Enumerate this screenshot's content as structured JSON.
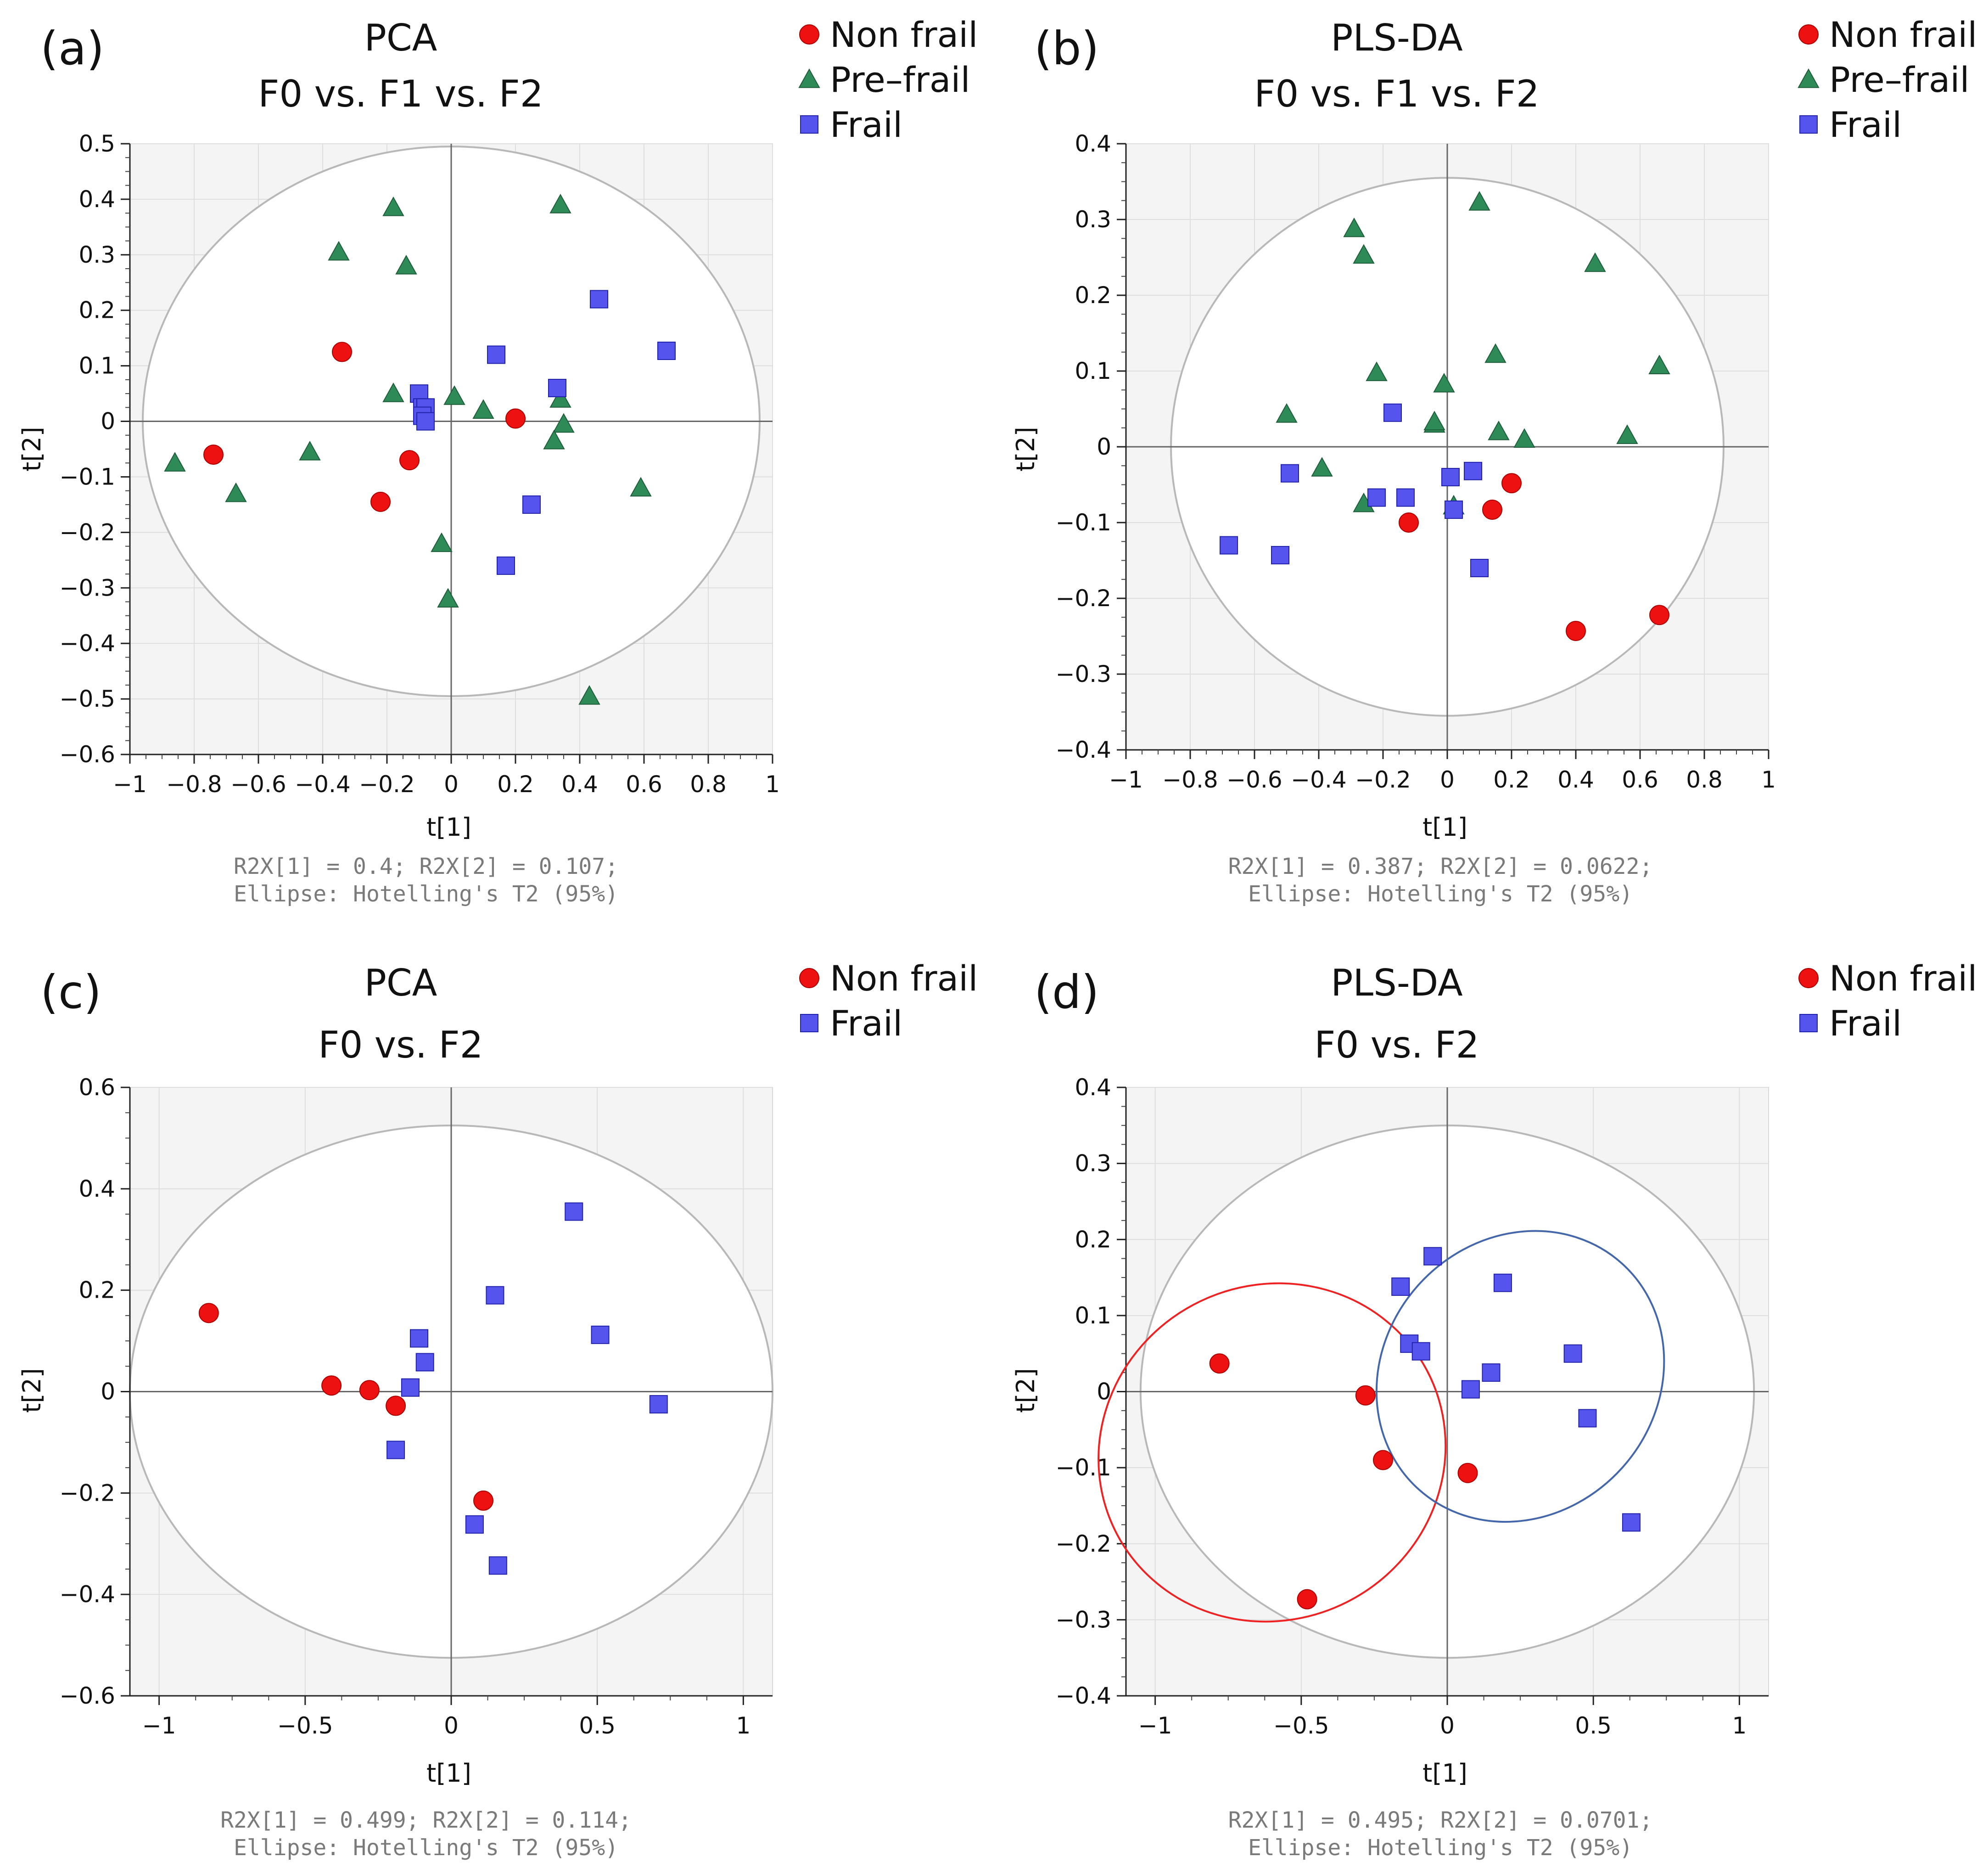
{
  "chart_data": [
    {
      "type": "scatter",
      "panel": "(a)",
      "title": "PCA",
      "subtitle": "F0 vs. F1 vs. F2",
      "xlabel": "t[1]",
      "ylabel": "t[2]",
      "xlim": [
        -1,
        1
      ],
      "ylim": [
        -0.6,
        0.5
      ],
      "xticks": [
        -1,
        -0.8,
        -0.6,
        -0.4,
        -0.2,
        0,
        0.2,
        0.4,
        0.6,
        0.8,
        1
      ],
      "xtick_labels": [
        "−1",
        "−0.8",
        "−0.6",
        "−0.4",
        "−0.2",
        "0",
        "0.2",
        "0.4",
        "0.6",
        "0.8",
        "1"
      ],
      "yticks": [
        -0.6,
        -0.5,
        -0.4,
        -0.3,
        -0.2,
        -0.1,
        0,
        0.1,
        0.2,
        0.3,
        0.4,
        0.5
      ],
      "ytick_labels": [
        "−0.6",
        "−0.5",
        "−0.4",
        "−0.3",
        "−0.2",
        "−0.1",
        "0",
        "0.1",
        "0.2",
        "0.3",
        "0.4",
        "0.5"
      ],
      "hotelling_ellipse": {
        "x_radius": 0.96,
        "y_radius": 0.495
      },
      "footer": [
        "R2X[1] = 0.4; R2X[2] = 0.107;",
        "Ellipse: Hotelling's T2 (95%)"
      ],
      "series": [
        {
          "name": "Non frail",
          "marker": "circle",
          "color": "#ee1111",
          "points": [
            [
              -0.74,
              -0.06
            ],
            [
              -0.34,
              0.125
            ],
            [
              -0.22,
              -0.145
            ],
            [
              -0.13,
              -0.07
            ],
            [
              0.2,
              0.005
            ]
          ]
        },
        {
          "name": "Pre–frail",
          "marker": "triangle",
          "color": "#2e8b57",
          "points": [
            [
              -0.86,
              -0.075
            ],
            [
              -0.67,
              -0.13
            ],
            [
              -0.44,
              -0.055
            ],
            [
              -0.35,
              0.305
            ],
            [
              -0.18,
              0.385
            ],
            [
              -0.14,
              0.28
            ],
            [
              -0.18,
              0.05
            ],
            [
              0.01,
              0.045
            ],
            [
              0.1,
              0.02
            ],
            [
              -0.03,
              -0.22
            ],
            [
              -0.01,
              -0.32
            ],
            [
              0.34,
              0.39
            ],
            [
              0.34,
              0.04
            ],
            [
              0.35,
              -0.005
            ],
            [
              0.32,
              -0.035
            ],
            [
              0.59,
              -0.12
            ],
            [
              0.43,
              -0.495
            ]
          ]
        },
        {
          "name": "Frail",
          "marker": "square",
          "color": "#5555ee",
          "points": [
            [
              -0.1,
              0.05
            ],
            [
              -0.09,
              0.025
            ],
            [
              -0.08,
              0.025
            ],
            [
              -0.09,
              0.01
            ],
            [
              -0.08,
              0
            ],
            [
              0.14,
              0.12
            ],
            [
              0.33,
              0.06
            ],
            [
              0.46,
              0.22
            ],
            [
              0.67,
              0.127
            ],
            [
              0.25,
              -0.15
            ],
            [
              0.17,
              -0.26
            ]
          ]
        }
      ]
    },
    {
      "type": "scatter",
      "panel": "(b)",
      "title": "PLS-DA",
      "subtitle": "F0 vs. F1 vs. F2",
      "xlabel": "t[1]",
      "ylabel": "t[2]",
      "xlim": [
        -1,
        1
      ],
      "ylim": [
        -0.4,
        0.4
      ],
      "xticks": [
        -1,
        -0.8,
        -0.6,
        -0.4,
        -0.2,
        0,
        0.2,
        0.4,
        0.6,
        0.8,
        1
      ],
      "xtick_labels": [
        "−1",
        "−0.8",
        "−0.6",
        "−0.4",
        "−0.2",
        "0",
        "0.2",
        "0.4",
        "0.6",
        "0.8",
        "1"
      ],
      "yticks": [
        -0.4,
        -0.3,
        -0.2,
        -0.1,
        0,
        0.1,
        0.2,
        0.3,
        0.4
      ],
      "ytick_labels": [
        "−0.4",
        "−0.3",
        "−0.2",
        "−0.1",
        "0",
        "0.1",
        "0.2",
        "0.3",
        "0.4"
      ],
      "hotelling_ellipse": {
        "x_radius": 0.86,
        "y_radius": 0.355
      },
      "footer": [
        "R2X[1] = 0.387; R2X[2] = 0.0622;",
        "Ellipse: Hotelling's T2 (95%)"
      ],
      "series": [
        {
          "name": "Non frail",
          "marker": "circle",
          "color": "#ee1111",
          "points": [
            [
              -0.12,
              -0.1
            ],
            [
              0.14,
              -0.083
            ],
            [
              0.2,
              -0.048
            ],
            [
              0.4,
              -0.243
            ],
            [
              0.66,
              -0.222
            ]
          ]
        },
        {
          "name": "Pre–frail",
          "marker": "triangle",
          "color": "#2e8b57",
          "points": [
            [
              -0.29,
              0.288
            ],
            [
              -0.26,
              0.253
            ],
            [
              -0.22,
              0.098
            ],
            [
              -0.5,
              0.043
            ],
            [
              -0.39,
              -0.028
            ],
            [
              -0.26,
              -0.075
            ],
            [
              -0.04,
              0.03
            ],
            [
              -0.04,
              0.033
            ],
            [
              -0.01,
              0.083
            ],
            [
              0.02,
              -0.078
            ],
            [
              0.1,
              0.323
            ],
            [
              0.15,
              0.122
            ],
            [
              0.16,
              0.02
            ],
            [
              0.24,
              0.01
            ],
            [
              0.46,
              0.242
            ],
            [
              0.56,
              0.015
            ],
            [
              0.66,
              0.107
            ]
          ]
        },
        {
          "name": "Frail",
          "marker": "square",
          "color": "#5555ee",
          "points": [
            [
              -0.17,
              0.045
            ],
            [
              -0.49,
              -0.035
            ],
            [
              -0.22,
              -0.067
            ],
            [
              -0.13,
              -0.067
            ],
            [
              -0.68,
              -0.13
            ],
            [
              -0.52,
              -0.143
            ],
            [
              0.01,
              -0.04
            ],
            [
              0.02,
              -0.083
            ],
            [
              0.08,
              -0.032
            ],
            [
              0.1,
              -0.16
            ]
          ]
        }
      ]
    },
    {
      "type": "scatter",
      "panel": "(c)",
      "title": "PCA",
      "subtitle": "F0 vs. F2",
      "xlabel": "t[1]",
      "ylabel": "t[2]",
      "xlim": [
        -1.1,
        1.1
      ],
      "ylim": [
        -0.6,
        0.6
      ],
      "xticks": [
        -1,
        -0.5,
        0,
        0.5,
        1
      ],
      "xtick_labels": [
        "−1",
        "−0.5",
        "0",
        "0.5",
        "1"
      ],
      "yticks": [
        -0.6,
        -0.4,
        -0.2,
        0,
        0.2,
        0.4,
        0.6
      ],
      "ytick_labels": [
        "−0.6",
        "−0.4",
        "−0.2",
        "0",
        "0.2",
        "0.4",
        "0.6"
      ],
      "hotelling_ellipse": {
        "x_radius": 1.1,
        "y_radius": 0.525
      },
      "footer": [
        "R2X[1] = 0.499; R2X[2] = 0.114;",
        "Ellipse: Hotelling's T2 (95%)"
      ],
      "series": [
        {
          "name": "Non frail",
          "marker": "circle",
          "color": "#ee1111",
          "points": [
            [
              -0.83,
              0.155
            ],
            [
              -0.41,
              0.012
            ],
            [
              -0.28,
              0.003
            ],
            [
              -0.19,
              -0.028
            ],
            [
              0.11,
              -0.215
            ]
          ]
        },
        {
          "name": "Frail",
          "marker": "square",
          "color": "#5555ee",
          "points": [
            [
              -0.11,
              0.105
            ],
            [
              -0.09,
              0.058
            ],
            [
              -0.14,
              0.008
            ],
            [
              -0.19,
              -0.115
            ],
            [
              0.15,
              0.19
            ],
            [
              0.42,
              0.355
            ],
            [
              0.51,
              0.112
            ],
            [
              0.71,
              -0.025
            ],
            [
              0.08,
              -0.262
            ],
            [
              0.16,
              -0.343
            ]
          ]
        }
      ]
    },
    {
      "type": "scatter",
      "panel": "(d)",
      "title": "PLS-DA",
      "subtitle": "F0 vs. F2",
      "xlabel": "t[1]",
      "ylabel": "t[2]",
      "xlim": [
        -1.1,
        1.1
      ],
      "ylim": [
        -0.4,
        0.4
      ],
      "xticks": [
        -1,
        -0.5,
        0,
        0.5,
        1
      ],
      "xtick_labels": [
        "−1",
        "−0.5",
        "0",
        "0.5",
        "1"
      ],
      "yticks": [
        -0.4,
        -0.3,
        -0.2,
        -0.1,
        0,
        0.1,
        0.2,
        0.3,
        0.4
      ],
      "ytick_labels": [
        "−0.4",
        "−0.3",
        "−0.2",
        "−0.1",
        "0",
        "0.1",
        "0.2",
        "0.3",
        "0.4"
      ],
      "hotelling_ellipse": {
        "x_radius": 1.05,
        "y_radius": 0.35
      },
      "group_ellipses": [
        {
          "group": "Non frail",
          "color": "#ee2222",
          "cx": -0.6,
          "cy": -0.08,
          "rx": 0.6,
          "ry": 0.22,
          "angle_deg": 28
        },
        {
          "group": "Frail",
          "color": "#4466aa",
          "cx": 0.25,
          "cy": 0.02,
          "rx": 0.52,
          "ry": 0.18,
          "angle_deg": 48
        }
      ],
      "footer": [
        "R2X[1] = 0.495; R2X[2] = 0.0701;",
        "Ellipse: Hotelling's T2 (95%)"
      ],
      "series": [
        {
          "name": "Non frail",
          "marker": "circle",
          "color": "#ee1111",
          "points": [
            [
              -0.78,
              0.037
            ],
            [
              -0.28,
              -0.005
            ],
            [
              -0.22,
              -0.09
            ],
            [
              0.07,
              -0.107
            ],
            [
              -0.48,
              -0.273
            ]
          ]
        },
        {
          "name": "Frail",
          "marker": "square",
          "color": "#5555ee",
          "points": [
            [
              -0.05,
              0.178
            ],
            [
              -0.16,
              0.138
            ],
            [
              0.19,
              0.143
            ],
            [
              -0.13,
              0.063
            ],
            [
              -0.09,
              0.053
            ],
            [
              0.43,
              0.05
            ],
            [
              0.15,
              0.025
            ],
            [
              0.08,
              0.003
            ],
            [
              0.48,
              -0.035
            ],
            [
              0.63,
              -0.172
            ]
          ]
        }
      ]
    }
  ]
}
